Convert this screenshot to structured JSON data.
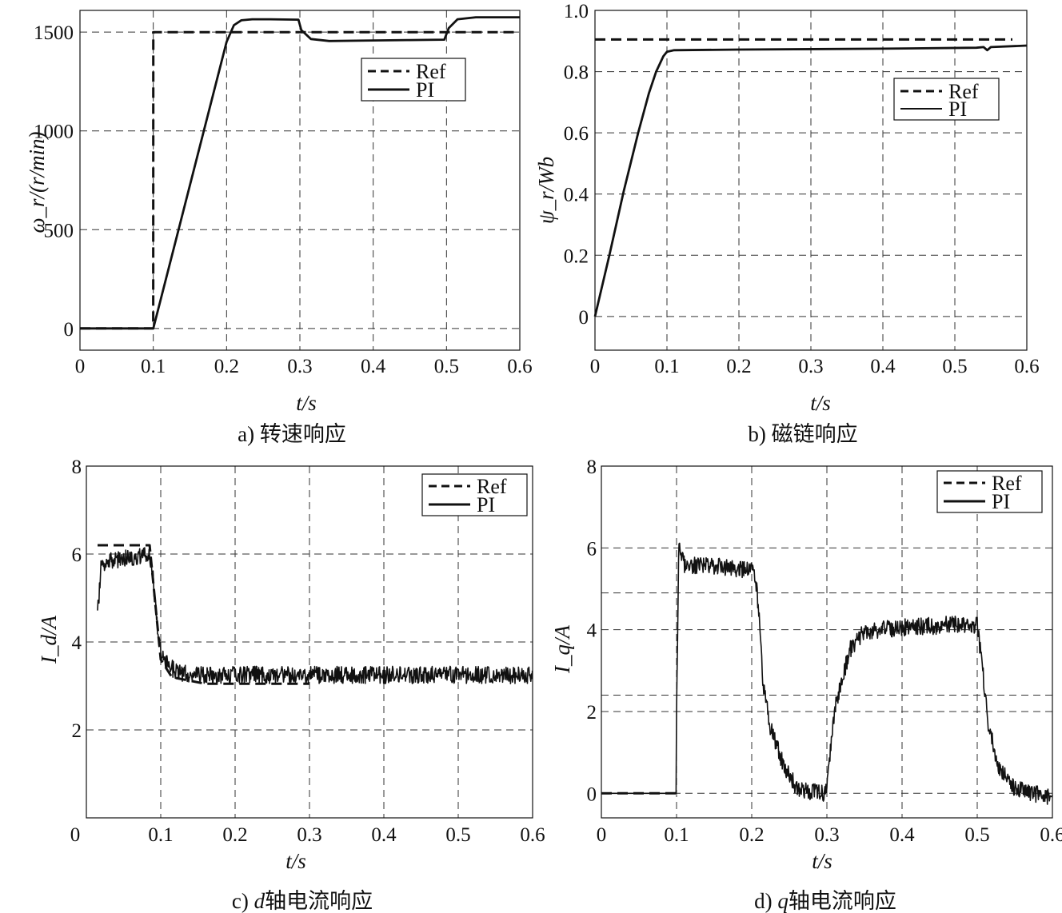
{
  "chart_data": [
    {
      "type": "line",
      "panel": "a",
      "caption": "a) 转速响应",
      "xlabel": "t/s",
      "ylabel": "ω_r/(r/min)",
      "xlim": [
        0,
        0.6
      ],
      "ylim": [
        -110,
        1610
      ],
      "xticks": [
        "0",
        "0.1",
        "0.2",
        "0.3",
        "0.4",
        "0.5",
        "0.6"
      ],
      "yticks": [
        "0",
        "500",
        "1000",
        "1500"
      ],
      "ytick_values": [
        0,
        500,
        1000,
        1500
      ],
      "grid": true,
      "legend": {
        "placement": "upper-right",
        "entries": [
          "Ref",
          "PI"
        ]
      },
      "series": [
        {
          "name": "Ref",
          "style": "dashed",
          "x": [
            0,
            0.0999,
            0.1,
            0.6
          ],
          "y": [
            0,
            0,
            1500,
            1500
          ]
        },
        {
          "name": "PI",
          "style": "solid",
          "x": [
            0,
            0.1,
            0.2,
            0.21,
            0.22,
            0.235,
            0.26,
            0.298,
            0.302,
            0.315,
            0.34,
            0.4,
            0.45,
            0.497,
            0.503,
            0.515,
            0.54,
            0.6
          ],
          "y": [
            0,
            0,
            1450,
            1535,
            1560,
            1565,
            1565,
            1563,
            1510,
            1465,
            1455,
            1458,
            1460,
            1462,
            1520,
            1565,
            1575,
            1575
          ]
        }
      ]
    },
    {
      "type": "line",
      "panel": "b",
      "caption": "b) 磁链响应",
      "xlabel": "t/s",
      "ylabel": "ψ_r/Wb",
      "xlim": [
        0,
        0.6
      ],
      "ylim": [
        -0.11,
        1.0
      ],
      "xticks": [
        "0",
        "0.1",
        "0.2",
        "0.3",
        "0.4",
        "0.5",
        "0.6"
      ],
      "yticks": [
        "0",
        "0.2",
        "0.4",
        "0.6",
        "0.8",
        "1.0"
      ],
      "ytick_values": [
        0,
        0.2,
        0.4,
        0.6,
        0.8,
        1.0
      ],
      "grid": true,
      "legend": {
        "placement": "upper-right",
        "entries": [
          "Ref",
          "PI"
        ]
      },
      "series": [
        {
          "name": "Ref",
          "style": "dashed",
          "x": [
            0,
            0.58
          ],
          "y": [
            0.905,
            0.905
          ]
        },
        {
          "name": "PI",
          "style": "solid",
          "x": [
            0,
            0.005,
            0.02,
            0.04,
            0.06,
            0.075,
            0.085,
            0.095,
            0.1,
            0.11,
            0.2,
            0.4,
            0.53,
            0.54,
            0.545,
            0.55,
            0.6
          ],
          "y": [
            0,
            0.05,
            0.2,
            0.41,
            0.6,
            0.73,
            0.8,
            0.85,
            0.865,
            0.87,
            0.872,
            0.875,
            0.878,
            0.88,
            0.87,
            0.88,
            0.885
          ]
        }
      ]
    },
    {
      "type": "line",
      "panel": "c",
      "caption": "c) d轴电流响应",
      "caption_parts": [
        "c) ",
        "d",
        "轴电流响应"
      ],
      "xlabel": "t/s",
      "ylabel": "I_d/A",
      "xlim": [
        0,
        0.6
      ],
      "ylim": [
        0,
        8
      ],
      "xticks": [
        "0",
        "0.1",
        "0.2",
        "0.3",
        "0.4",
        "0.5",
        "0.6"
      ],
      "yticks": [
        "2",
        "4",
        "6",
        "8"
      ],
      "ytick_values": [
        2,
        4,
        6,
        8
      ],
      "grid": true,
      "legend": {
        "placement": "upper-right",
        "entries": [
          "Ref",
          "PI"
        ]
      },
      "series": [
        {
          "name": "Ref",
          "style": "dashed",
          "x": [
            0.015,
            0.085,
            0.1,
            0.115,
            0.16,
            0.3
          ],
          "y": [
            6.2,
            6.2,
            3.6,
            3.2,
            3.05,
            3.05
          ]
        },
        {
          "name": "PI",
          "style": "solid",
          "noisy": true,
          "x": [
            0.015,
            0.02,
            0.085,
            0.09,
            0.095,
            0.1,
            0.11,
            0.125,
            0.15,
            0.2,
            0.4,
            0.6
          ],
          "y": [
            4.6,
            5.8,
            6.0,
            5.4,
            4.4,
            3.75,
            3.45,
            3.3,
            3.25,
            3.25,
            3.25,
            3.25
          ]
        }
      ]
    },
    {
      "type": "line",
      "panel": "d",
      "caption": "d) q轴电流响应",
      "caption_parts": [
        "d) ",
        "q",
        "轴电流响应"
      ],
      "xlabel": "t/s",
      "ylabel": "I_q/A",
      "xlim": [
        0,
        0.6
      ],
      "ylim": [
        -0.6,
        8
      ],
      "xticks": [
        "0",
        "0.1",
        "0.2",
        "0.3",
        "0.4",
        "0.5",
        "0.6"
      ],
      "yticks": [
        "0",
        "2",
        "4",
        "6",
        "8"
      ],
      "ytick_values": [
        0,
        2,
        4,
        6,
        8
      ],
      "grid": true,
      "extra_grid_y": [
        2.4,
        4.9
      ],
      "legend": {
        "placement": "upper-right",
        "entries": [
          "Ref",
          "PI"
        ]
      },
      "series": [
        {
          "name": "Ref",
          "style": "dashed",
          "x": [
            0,
            0.1
          ],
          "y": [
            0,
            0
          ]
        },
        {
          "name": "PI",
          "style": "solid",
          "noisy_after": 0.1,
          "x": [
            0,
            0.0999,
            0.1,
            0.103,
            0.11,
            0.15,
            0.2,
            0.205,
            0.21,
            0.215,
            0.225,
            0.24,
            0.26,
            0.298,
            0.302,
            0.31,
            0.33,
            0.35,
            0.4,
            0.49,
            0.5,
            0.505,
            0.515,
            0.53,
            0.55,
            0.6
          ],
          "y": [
            0,
            0,
            2.0,
            6.0,
            5.6,
            5.55,
            5.45,
            5.3,
            4.3,
            2.6,
            1.6,
            0.8,
            0.1,
            0.0,
            0.6,
            2.0,
            3.5,
            3.95,
            4.05,
            4.15,
            4.1,
            3.4,
            1.6,
            0.6,
            0.1,
            -0.1
          ]
        }
      ]
    }
  ]
}
